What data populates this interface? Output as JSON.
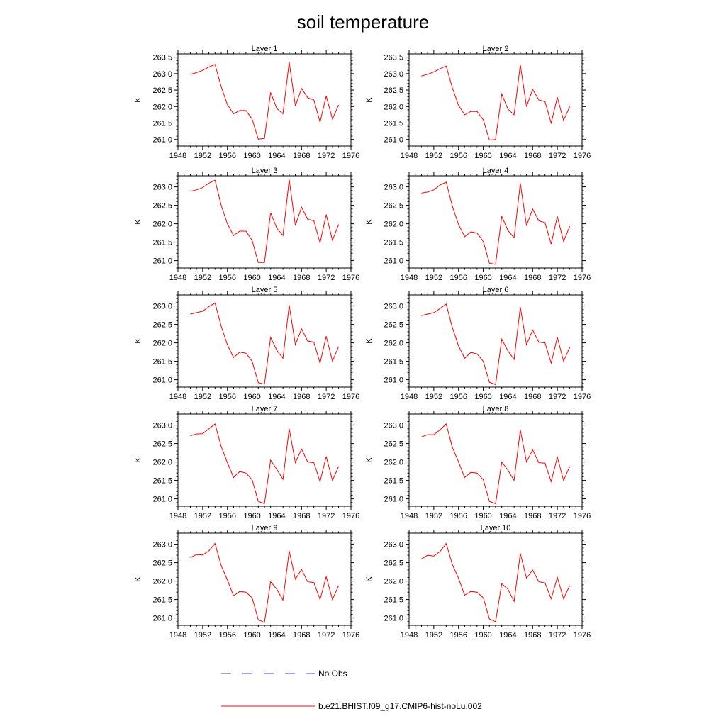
{
  "title": "soil temperature",
  "chart_data": {
    "type": "line",
    "title": "soil temperature",
    "ylabel": "K",
    "xlabel": "",
    "x_ticks": [
      1948,
      1952,
      1956,
      1960,
      1964,
      1968,
      1972,
      1976
    ],
    "xlim": [
      1948,
      1976
    ],
    "x": [
      1950,
      1951,
      1952,
      1953,
      1954,
      1955,
      1956,
      1957,
      1958,
      1959,
      1960,
      1961,
      1962,
      1963,
      1964,
      1965,
      1966,
      1967,
      1968,
      1969,
      1970,
      1971,
      1972,
      1973,
      1974
    ],
    "panels": [
      {
        "title": "Layer 1",
        "ylim": [
          260.8,
          263.6
        ],
        "y_ticks": [
          "261.0",
          "261.5",
          "262.0",
          "262.5",
          "263.0",
          "263.5"
        ],
        "series": [
          {
            "name": "b.e21.BHIST.f09_g17.CMIP6-hist-noLu.002",
            "color": "#ff0000",
            "values": [
              262.98,
              263.03,
              263.1,
              263.2,
              263.28,
              262.6,
              262.06,
              261.78,
              261.88,
              261.88,
              261.62,
              261.01,
              261.03,
              262.43,
              261.94,
              261.78,
              263.35,
              262.02,
              262.55,
              262.27,
              262.2,
              261.53,
              262.32,
              261.62,
              262.05
            ]
          }
        ]
      },
      {
        "title": "Layer 2",
        "ylim": [
          260.8,
          263.6
        ],
        "y_ticks": [
          "261.0",
          "261.5",
          "262.0",
          "262.5",
          "263.0",
          "263.5"
        ],
        "series": [
          {
            "name": "b.e21.BHIST.f09_g17.CMIP6-hist-noLu.002",
            "color": "#ff0000",
            "values": [
              262.93,
              262.98,
              263.05,
              263.15,
              263.23,
              262.57,
              262.04,
              261.75,
              261.85,
              261.85,
              261.6,
              260.98,
              261.0,
              262.38,
              261.92,
              261.75,
              263.27,
              262.0,
              262.52,
              262.2,
              262.15,
              261.5,
              262.28,
              261.58,
              262.0
            ]
          }
        ]
      },
      {
        "title": "Layer 3",
        "ylim": [
          260.8,
          263.3
        ],
        "y_ticks": [
          "261.0",
          "261.5",
          "262.0",
          "262.5",
          "263.0"
        ],
        "series": [
          {
            "name": "b.e21.BHIST.f09_g17.CMIP6-hist-noLu.002",
            "color": "#ff0000",
            "values": [
              262.88,
              262.92,
              262.98,
              263.1,
              263.18,
              262.5,
              262.0,
              261.68,
              261.8,
              261.8,
              261.55,
              260.95,
              260.95,
              262.3,
              261.88,
              261.68,
              263.2,
              261.95,
              262.45,
              262.12,
              262.08,
              261.48,
              262.25,
              261.55,
              261.98
            ]
          }
        ]
      },
      {
        "title": "Layer 4",
        "ylim": [
          260.8,
          263.3
        ],
        "y_ticks": [
          "261.0",
          "261.5",
          "262.0",
          "262.5",
          "263.0"
        ],
        "series": [
          {
            "name": "b.e21.BHIST.f09_g17.CMIP6-hist-noLu.002",
            "color": "#ff0000",
            "values": [
              262.83,
              262.86,
              262.92,
              263.05,
              263.13,
              262.48,
              261.98,
              261.65,
              261.78,
              261.75,
              261.52,
              260.93,
              260.9,
              262.2,
              261.82,
              261.62,
              263.1,
              261.95,
              262.4,
              262.08,
              262.03,
              261.45,
              262.2,
              261.52,
              261.93
            ]
          }
        ]
      },
      {
        "title": "Layer 5",
        "ylim": [
          260.8,
          263.3
        ],
        "y_ticks": [
          "261.0",
          "261.5",
          "262.0",
          "262.5",
          "263.0"
        ],
        "series": [
          {
            "name": "b.e21.BHIST.f09_g17.CMIP6-hist-noLu.002",
            "color": "#ff0000",
            "values": [
              262.78,
              262.82,
              262.86,
              262.98,
              263.08,
              262.45,
              261.95,
              261.6,
              261.75,
              261.72,
              261.5,
              260.92,
              260.88,
              262.15,
              261.8,
              261.58,
              263.02,
              261.95,
              262.38,
              262.05,
              262.02,
              261.45,
              262.18,
              261.5,
              261.9
            ]
          }
        ]
      },
      {
        "title": "Layer 6",
        "ylim": [
          260.8,
          263.3
        ],
        "y_ticks": [
          "261.0",
          "261.5",
          "262.0",
          "262.5",
          "263.0"
        ],
        "series": [
          {
            "name": "b.e21.BHIST.f09_g17.CMIP6-hist-noLu.002",
            "color": "#ff0000",
            "values": [
              262.74,
              262.78,
              262.82,
              262.93,
              263.05,
              262.42,
              261.92,
              261.58,
              261.74,
              261.7,
              261.5,
              260.93,
              260.87,
              262.1,
              261.78,
              261.55,
              262.97,
              261.95,
              262.35,
              262.02,
              262.0,
              261.45,
              262.15,
              261.5,
              261.88
            ]
          }
        ]
      },
      {
        "title": "Layer 7",
        "ylim": [
          260.8,
          263.3
        ],
        "y_ticks": [
          "261.0",
          "261.5",
          "262.0",
          "262.5",
          "263.0"
        ],
        "series": [
          {
            "name": "b.e21.BHIST.f09_g17.CMIP6-hist-noLu.002",
            "color": "#ff0000",
            "values": [
              262.71,
              262.76,
              262.77,
              262.9,
              263.03,
              262.42,
              261.98,
              261.58,
              261.74,
              261.7,
              261.52,
              260.93,
              260.87,
              262.05,
              261.8,
              261.53,
              262.9,
              261.98,
              262.35,
              262.0,
              261.98,
              261.47,
              262.15,
              261.5,
              261.88
            ]
          }
        ]
      },
      {
        "title": "Layer 8",
        "ylim": [
          260.8,
          263.3
        ],
        "y_ticks": [
          "261.0",
          "261.5",
          "262.0",
          "262.5",
          "263.0"
        ],
        "series": [
          {
            "name": "b.e21.BHIST.f09_g17.CMIP6-hist-noLu.002",
            "color": "#ff0000",
            "values": [
              262.68,
              262.74,
              262.74,
              262.87,
              263.03,
              262.4,
              262.0,
              261.58,
              261.72,
              261.7,
              261.52,
              260.93,
              260.87,
              262.0,
              261.78,
              261.5,
              262.87,
              262.0,
              262.33,
              261.98,
              261.97,
              261.47,
              262.13,
              261.5,
              261.88
            ]
          }
        ]
      },
      {
        "title": "Layer 9",
        "ylim": [
          260.8,
          263.3
        ],
        "y_ticks": [
          "261.0",
          "261.5",
          "262.0",
          "262.5",
          "263.0"
        ],
        "series": [
          {
            "name": "b.e21.BHIST.f09_g17.CMIP6-hist-noLu.002",
            "color": "#ff0000",
            "values": [
              262.64,
              262.72,
              262.71,
              262.82,
              263.02,
              262.42,
              262.03,
              261.6,
              261.72,
              261.7,
              261.55,
              260.95,
              260.88,
              261.98,
              261.78,
              261.48,
              262.82,
              262.05,
              262.32,
              261.98,
              261.96,
              261.5,
              262.12,
              261.5,
              261.88
            ]
          }
        ]
      },
      {
        "title": "Layer 10",
        "ylim": [
          260.8,
          263.3
        ],
        "y_ticks": [
          "261.0",
          "261.5",
          "262.0",
          "262.5",
          "263.0"
        ],
        "series": [
          {
            "name": "b.e21.BHIST.f09_g17.CMIP6-hist-noLu.002",
            "color": "#ff0000",
            "values": [
              262.6,
              262.7,
              262.68,
              262.8,
              263.02,
              262.45,
              262.08,
              261.62,
              261.72,
              261.7,
              261.55,
              260.97,
              260.9,
              261.93,
              261.78,
              261.45,
              262.75,
              262.08,
              262.3,
              261.98,
              261.95,
              261.52,
              262.1,
              261.52,
              261.88
            ]
          }
        ]
      }
    ],
    "legend": [
      {
        "label": "No Obs",
        "color": "#4444cc",
        "style": "dashed"
      },
      {
        "label": "b.e21.BHIST.f09_g17.CMIP6-hist-noLu.002",
        "color": "#ff0000",
        "style": "solid"
      }
    ]
  }
}
